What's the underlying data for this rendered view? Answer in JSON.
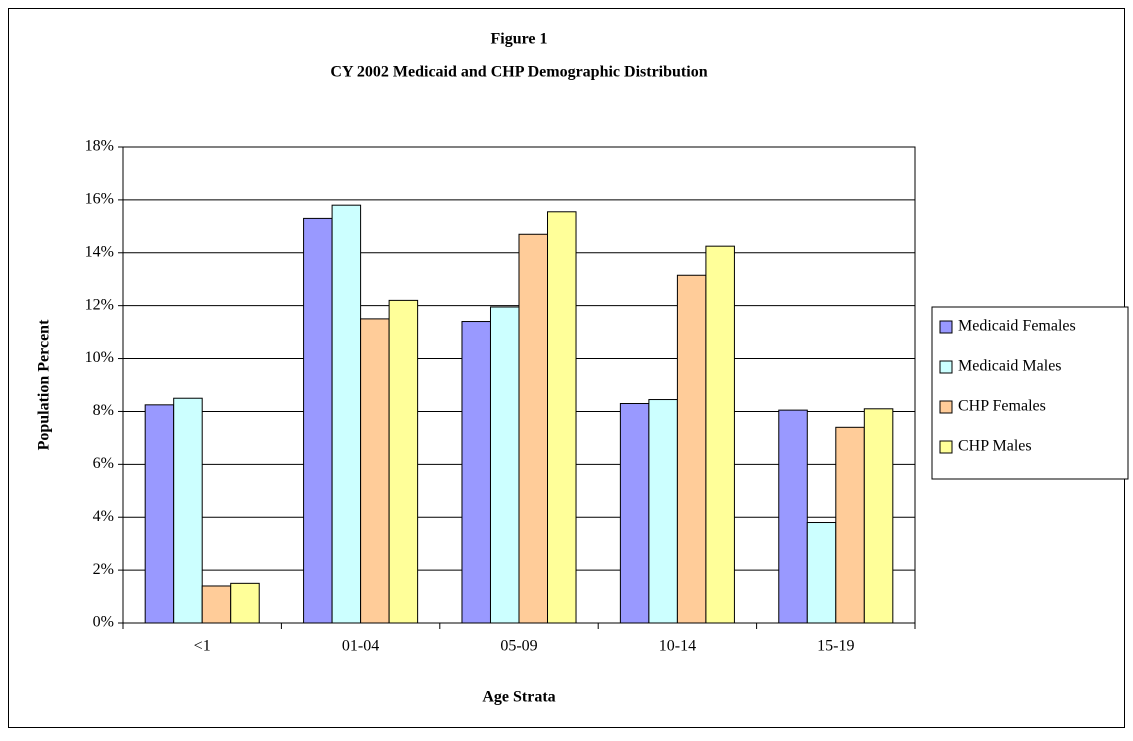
{
  "chart_data": {
    "type": "bar",
    "title": "Figure 1",
    "subtitle": "CY 2002 Medicaid and CHP Demographic Distribution",
    "x_label": "Age Strata",
    "y_label": "Population Percent",
    "categories": [
      "<1",
      "01-04",
      "05-09",
      "10-14",
      "15-19"
    ],
    "series": [
      {
        "name": "Medicaid Females",
        "color": "#9999ff",
        "values": [
          8.25,
          15.3,
          11.4,
          8.3,
          8.05
        ]
      },
      {
        "name": "Medicaid Males",
        "color": "#ccffff",
        "values": [
          8.5,
          15.8,
          11.95,
          8.45,
          3.8
        ]
      },
      {
        "name": "CHP Females",
        "color": "#ffcc99",
        "values": [
          1.4,
          11.5,
          14.7,
          13.15,
          7.4
        ]
      },
      {
        "name": "CHP Males",
        "color": "#ffff99",
        "values": [
          1.5,
          12.2,
          15.55,
          14.25,
          8.1
        ]
      }
    ],
    "ylim": [
      0,
      18
    ],
    "yticks": [
      {
        "value": 0,
        "label": "0%"
      },
      {
        "value": 2,
        "label": "2%"
      },
      {
        "value": 4,
        "label": "4%"
      },
      {
        "value": 6,
        "label": "6%"
      },
      {
        "value": 8,
        "label": "8%"
      },
      {
        "value": 10,
        "label": "10%"
      },
      {
        "value": 12,
        "label": "12%"
      },
      {
        "value": 14,
        "label": "14%"
      },
      {
        "value": 16,
        "label": "16%"
      },
      {
        "value": 18,
        "label": "18%"
      }
    ],
    "grid": true,
    "legend": "right"
  }
}
